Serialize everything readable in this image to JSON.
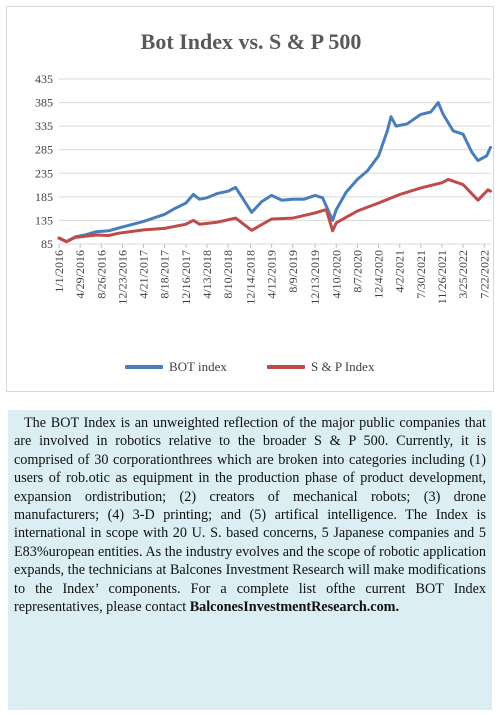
{
  "chart_data": {
    "type": "line",
    "title": "Bot Index vs. S & P 500",
    "yticks": [
      85,
      135,
      185,
      235,
      285,
      335,
      385,
      435
    ],
    "ylim": [
      85,
      435
    ],
    "xticks": [
      "1/1/2016",
      "4/29/2016",
      "8/26/2016",
      "12/23/2016",
      "4/21/2017",
      "8/18/2017",
      "12/16/2017",
      "4/13/2018",
      "8/10/2018",
      "12/14/2018",
      "4/12/2019",
      "8/9/2019",
      "12/13/2019",
      "4/10/2020",
      "8/7/2020",
      "12/4/2020",
      "4/2/2021",
      "7/30/2021",
      "11/26/2021",
      "3/25/2022",
      "7/22/2022"
    ],
    "grid": true,
    "legend_position": "bottom",
    "series": [
      {
        "name": "BOT index",
        "color": "#4a7ebb",
        "points": [
          [
            "2016-01-01",
            97
          ],
          [
            "2016-02-12",
            90
          ],
          [
            "2016-04-01",
            100
          ],
          [
            "2016-06-03",
            105
          ],
          [
            "2016-07-29",
            111
          ],
          [
            "2016-10-07",
            113
          ],
          [
            "2016-12-02",
            119
          ],
          [
            "2017-02-03",
            125
          ],
          [
            "2017-04-21",
            133
          ],
          [
            "2017-06-16",
            140
          ],
          [
            "2017-08-18",
            148
          ],
          [
            "2017-10-13",
            160
          ],
          [
            "2017-12-16",
            172
          ],
          [
            "2018-01-26",
            190
          ],
          [
            "2018-03-02",
            180
          ],
          [
            "2018-04-13",
            183
          ],
          [
            "2018-06-08",
            192
          ],
          [
            "2018-08-10",
            197
          ],
          [
            "2018-09-21",
            205
          ],
          [
            "2018-10-26",
            185
          ],
          [
            "2018-12-21",
            152
          ],
          [
            "2019-02-15",
            175
          ],
          [
            "2019-04-12",
            188
          ],
          [
            "2019-06-07",
            178
          ],
          [
            "2019-08-09",
            180
          ],
          [
            "2019-10-11",
            180
          ],
          [
            "2019-12-13",
            188
          ],
          [
            "2020-01-24",
            183
          ],
          [
            "2020-03-20",
            135
          ],
          [
            "2020-04-10",
            158
          ],
          [
            "2020-06-05",
            195
          ],
          [
            "2020-08-07",
            222
          ],
          [
            "2020-10-02",
            240
          ],
          [
            "2020-12-04",
            272
          ],
          [
            "2021-01-22",
            325
          ],
          [
            "2021-02-12",
            355
          ],
          [
            "2021-03-12",
            335
          ],
          [
            "2021-05-14",
            340
          ],
          [
            "2021-07-30",
            360
          ],
          [
            "2021-09-24",
            365
          ],
          [
            "2021-11-05",
            385
          ],
          [
            "2021-12-03",
            360
          ],
          [
            "2022-01-28",
            325
          ],
          [
            "2022-03-25",
            318
          ],
          [
            "2022-05-13",
            280
          ],
          [
            "2022-06-17",
            262
          ],
          [
            "2022-08-05",
            272
          ],
          [
            "2022-08-26",
            290
          ]
        ]
      },
      {
        "name": "S & P Index",
        "color": "#be4b48",
        "points": [
          [
            "2016-01-01",
            98
          ],
          [
            "2016-02-12",
            90
          ],
          [
            "2016-04-01",
            99
          ],
          [
            "2016-07-29",
            104
          ],
          [
            "2016-10-07",
            103
          ],
          [
            "2016-12-02",
            108
          ],
          [
            "2017-04-21",
            115
          ],
          [
            "2017-08-18",
            118
          ],
          [
            "2017-12-16",
            127
          ],
          [
            "2018-01-26",
            135
          ],
          [
            "2018-03-02",
            127
          ],
          [
            "2018-06-08",
            131
          ],
          [
            "2018-09-21",
            140
          ],
          [
            "2018-12-21",
            114
          ],
          [
            "2019-04-12",
            138
          ],
          [
            "2019-08-09",
            140
          ],
          [
            "2019-12-13",
            151
          ],
          [
            "2020-02-14",
            158
          ],
          [
            "2020-03-20",
            113
          ],
          [
            "2020-04-10",
            130
          ],
          [
            "2020-08-07",
            155
          ],
          [
            "2020-12-04",
            172
          ],
          [
            "2021-04-02",
            190
          ],
          [
            "2021-07-30",
            204
          ],
          [
            "2021-11-26",
            215
          ],
          [
            "2021-12-31",
            222
          ],
          [
            "2022-03-25",
            211
          ],
          [
            "2022-06-17",
            178
          ],
          [
            "2022-08-12",
            200
          ],
          [
            "2022-08-26",
            197
          ]
        ]
      }
    ]
  },
  "description": {
    "paragraph": "The BOT Index is an unweighted reflection of the major public companies that are involved in robotics relative to the broader S & P 500. Currently, it is comprised of 30 corporationthrees which are broken into categories including (1) users of rob.otic as equipment in the production phase of product development, expansion ordistribution; (2) creators of mechanical robots; (3) drone manufacturers; (4) 3-D printing; and (5) artifical intelligence. The Index is international in scope with 20 U. S. based concerns, 5 Japanese companies and 5 E83%uropean entities. As the industry evolves and the scope of robotic application expands, the technicians at Balcones Investment Research will make modifications to the Index’ components. For a  complete list ofthe current    BOT    Index    representatives,    please    contact",
    "contact": "BalconesInvestmentResearch.com."
  }
}
